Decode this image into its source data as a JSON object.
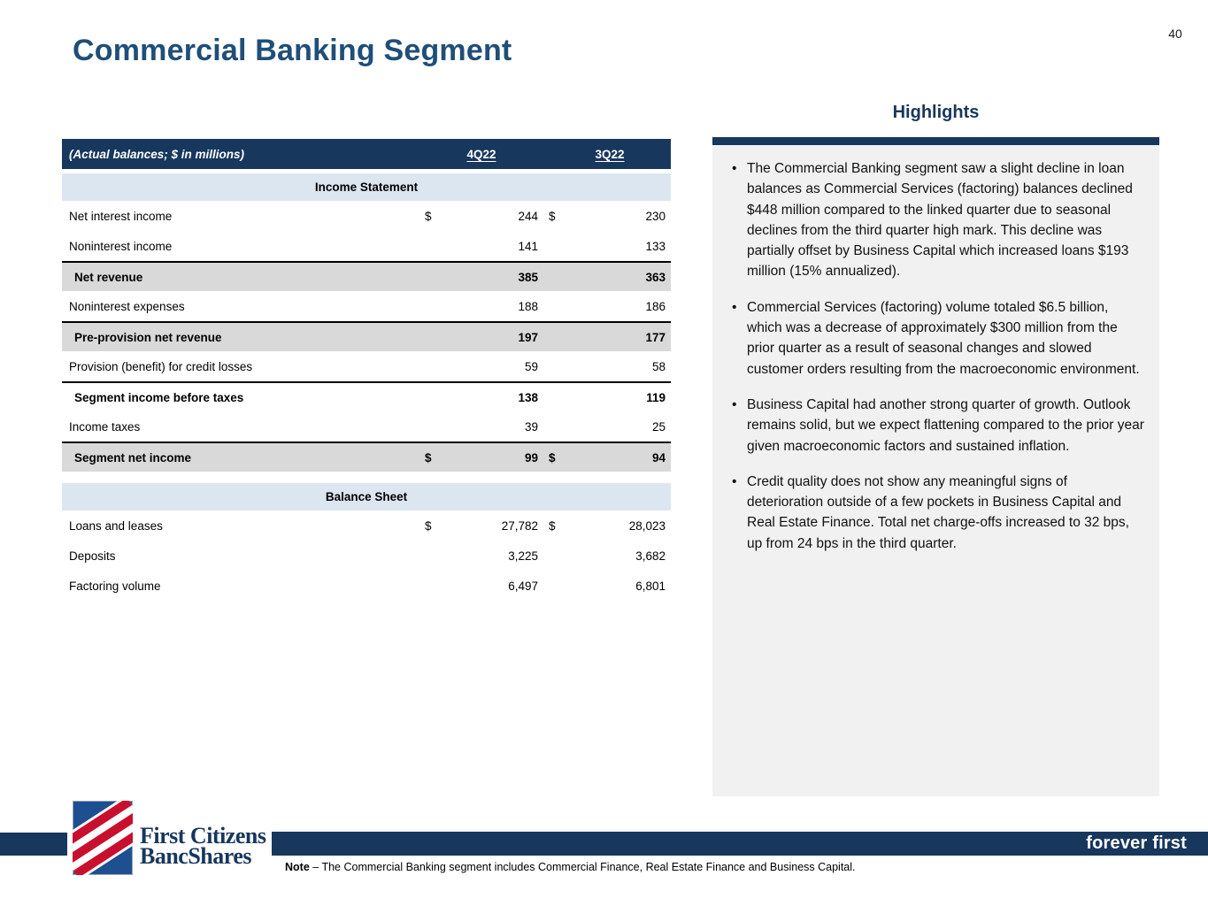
{
  "page": {
    "number": "40",
    "title": "Commercial Banking Segment"
  },
  "colors": {
    "navy": "#17375d",
    "title_blue": "#1f4e79",
    "section_band_blue": "#dce6f1",
    "subtotal_gray": "#d9d9d9",
    "panel_gray": "#f1f1f1",
    "logo_blue": "#1d4f91",
    "logo_red": "#c8102e"
  },
  "table": {
    "header": {
      "caption": "(Actual balances; $ in millions)",
      "col1": "4Q22",
      "col2": "3Q22"
    },
    "sections": [
      {
        "title": "Income Statement",
        "rows": [
          {
            "label": "Net interest income",
            "d1": "$",
            "v1": "244",
            "d2": "$",
            "v2": "230",
            "style": "normal"
          },
          {
            "label": "Noninterest income",
            "d1": "",
            "v1": "141",
            "d2": "",
            "v2": "133",
            "style": "normal"
          },
          {
            "label": "Net revenue",
            "d1": "",
            "v1": "385",
            "d2": "",
            "v2": "363",
            "style": "subtotal-gray"
          },
          {
            "label": "Noninterest expenses",
            "d1": "",
            "v1": "188",
            "d2": "",
            "v2": "186",
            "style": "normal"
          },
          {
            "label": "Pre-provision net revenue",
            "d1": "",
            "v1": "197",
            "d2": "",
            "v2": "177",
            "style": "subtotal-gray"
          },
          {
            "label": "Provision (benefit) for credit losses",
            "d1": "",
            "v1": "59",
            "d2": "",
            "v2": "58",
            "style": "normal"
          },
          {
            "label": "Segment income before taxes",
            "d1": "",
            "v1": "138",
            "d2": "",
            "v2": "119",
            "style": "subtotal-white"
          },
          {
            "label": "Income taxes",
            "d1": "",
            "v1": "39",
            "d2": "",
            "v2": "25",
            "style": "normal"
          },
          {
            "label": "Segment net income",
            "d1": "$",
            "v1": "99",
            "d2": "$",
            "v2": "94",
            "style": "subtotal-gray"
          }
        ]
      },
      {
        "title": "Balance Sheet",
        "rows": [
          {
            "label": "Loans and leases",
            "d1": "$",
            "v1": "27,782",
            "d2": "$",
            "v2": "28,023",
            "style": "normal"
          },
          {
            "label": "Deposits",
            "d1": "",
            "v1": "3,225",
            "d2": "",
            "v2": "3,682",
            "style": "normal"
          },
          {
            "label": "Factoring volume",
            "d1": "",
            "v1": "6,497",
            "d2": "",
            "v2": "6,801",
            "style": "normal"
          }
        ]
      }
    ]
  },
  "highlights": {
    "title": "Highlights",
    "bullets": [
      "The Commercial Banking segment saw a slight decline in loan balances as Commercial Services (factoring) balances declined $448 million compared to the linked quarter due to seasonal declines from the third quarter high mark. This decline was partially offset by Business Capital which increased loans $193 million (15% annualized).",
      "Commercial Services (factoring) volume totaled $6.5 billion, which was a decrease of approximately $300 million from the prior quarter as a result of seasonal changes and slowed customer orders resulting from the macroeconomic environment.",
      "Business Capital had another strong quarter of growth. Outlook remains solid, but we expect flattening compared to the prior year given macroeconomic factors and sustained inflation.",
      "Credit quality does not show any meaningful signs of deterioration outside of a few pockets in Business Capital and Real Estate Finance. Total net charge-offs increased to 32 bps, up from 24 bps in the third quarter."
    ]
  },
  "footer": {
    "logo_line1": "First Citizens",
    "logo_line2": "BancShares",
    "tagline": "forever first",
    "note_label": "Note",
    "note_rest": " – The Commercial Banking segment includes Commercial Finance, Real Estate Finance and Business Capital."
  }
}
